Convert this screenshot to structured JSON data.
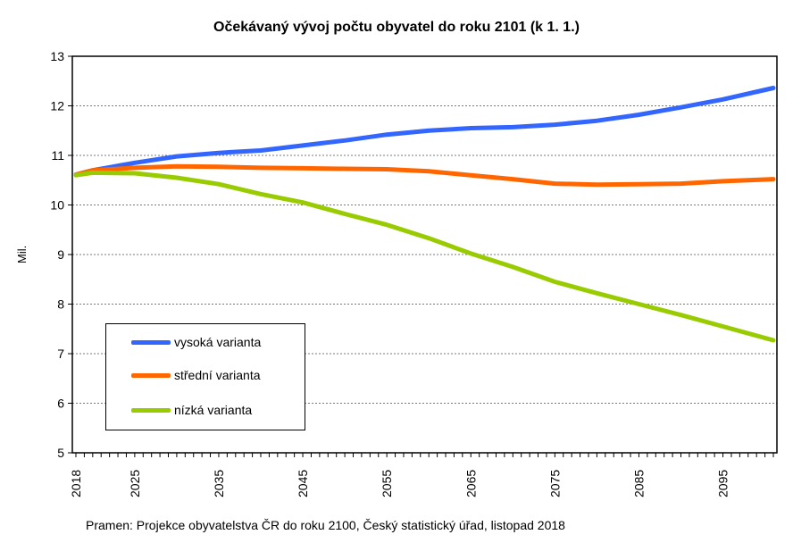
{
  "chart_data": {
    "type": "line",
    "title": "Očekávaný vývoj počtu obyvatel do roku 2101 (k 1. 1.)",
    "xlabel": "",
    "ylabel": "Mil.",
    "ylim": [
      5,
      13
    ],
    "yticks": [
      "5",
      "6",
      "7",
      "8",
      "9",
      "10",
      "11",
      "12",
      "13"
    ],
    "xlim": [
      2018,
      2101
    ],
    "xticks": [
      "2018",
      "2025",
      "2035",
      "2045",
      "2055",
      "2065",
      "2075",
      "2085",
      "2095"
    ],
    "grid": "horizontal dotted",
    "legend_position": "bottom-left",
    "x": [
      2018,
      2020,
      2025,
      2030,
      2035,
      2040,
      2045,
      2050,
      2055,
      2060,
      2065,
      2070,
      2075,
      2080,
      2085,
      2090,
      2095,
      2101
    ],
    "series": [
      {
        "name": "vysoká varianta",
        "color": "#3366FF",
        "values": [
          10.61,
          10.7,
          10.85,
          10.98,
          11.05,
          11.1,
          11.2,
          11.3,
          11.42,
          11.5,
          11.55,
          11.57,
          11.62,
          11.7,
          11.82,
          11.97,
          12.13,
          12.36
        ]
      },
      {
        "name": "střední varianta",
        "color": "#FF6600",
        "values": [
          10.61,
          10.7,
          10.75,
          10.78,
          10.77,
          10.75,
          10.74,
          10.73,
          10.72,
          10.68,
          10.6,
          10.52,
          10.43,
          10.41,
          10.42,
          10.43,
          10.48,
          10.52
        ]
      },
      {
        "name": "nízká varianta",
        "color": "#99CC00",
        "values": [
          10.6,
          10.65,
          10.64,
          10.55,
          10.42,
          10.22,
          10.05,
          9.82,
          9.6,
          9.33,
          9.02,
          8.75,
          8.45,
          8.22,
          8.0,
          7.78,
          7.55,
          7.27
        ]
      }
    ]
  },
  "source": "Pramen: Projekce obyvatelstva  ČR do roku 2100, Český statistický úřad, listopad 2018"
}
